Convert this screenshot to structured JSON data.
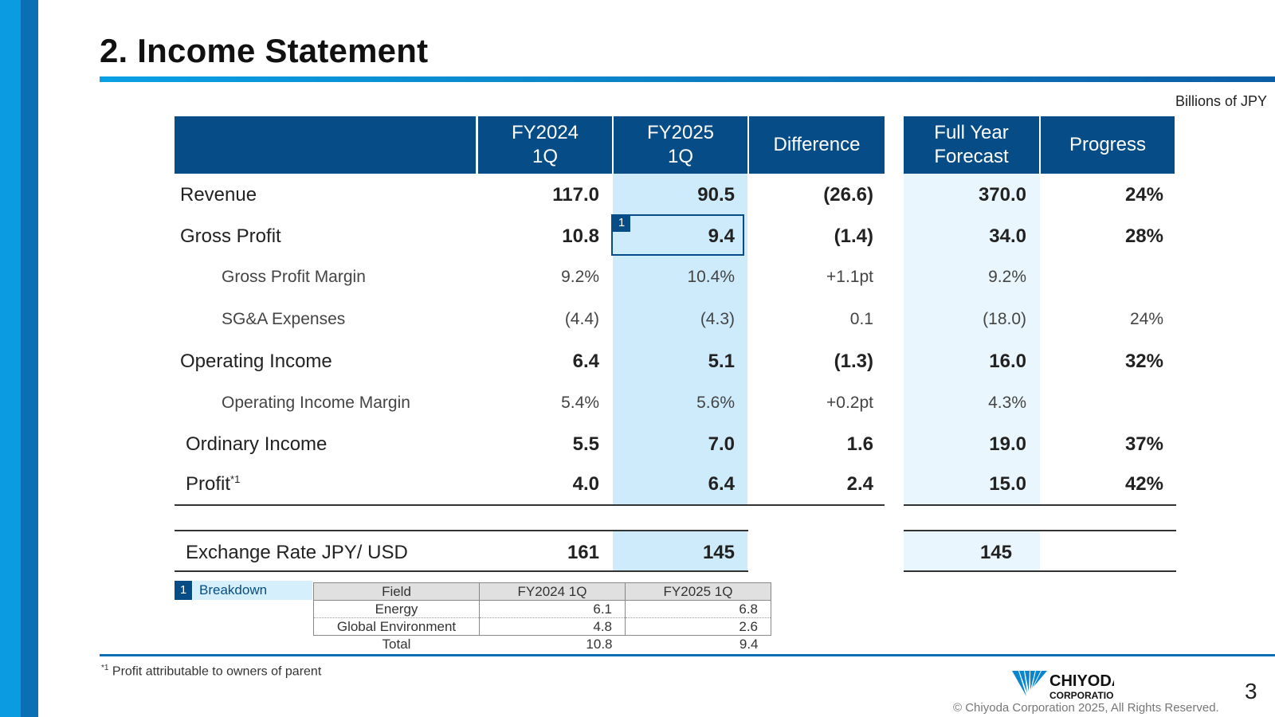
{
  "title": "2. Income Statement",
  "units": "Billions of JPY",
  "headers": {
    "fy2024": "FY2024\n1Q",
    "fy2025": "FY2025\n1Q",
    "difference": "Difference",
    "forecast": "Full Year\nForecast",
    "progress": "Progress"
  },
  "rows": [
    {
      "label": "Revenue",
      "fy2024": "117.0",
      "fy2025": "90.5",
      "difference": "(26.6)",
      "forecast": "370.0",
      "progress": "24%"
    },
    {
      "label": "Gross Profit",
      "fy2024": "10.8",
      "fy2025": "9.4",
      "difference": "(1.4)",
      "forecast": "34.0",
      "progress": "28%"
    },
    {
      "label": "Gross Profit Margin",
      "fy2024": "9.2%",
      "fy2025": "10.4%",
      "difference": "+1.1pt",
      "forecast": "9.2%",
      "progress": ""
    },
    {
      "label": "SG&A Expenses",
      "fy2024": "(4.4)",
      "fy2025": "(4.3)",
      "difference": "0.1",
      "forecast": "(18.0)",
      "progress": "24%"
    },
    {
      "label": "Operating Income",
      "fy2024": "6.4",
      "fy2025": "5.1",
      "difference": "(1.3)",
      "forecast": "16.0",
      "progress": "32%"
    },
    {
      "label": "Operating Income Margin",
      "fy2024": "5.4%",
      "fy2025": "5.6%",
      "difference": "+0.2pt",
      "forecast": "4.3%",
      "progress": ""
    },
    {
      "label": "Ordinary Income",
      "fy2024": "5.5",
      "fy2025": "7.0",
      "difference": "1.6",
      "forecast": "19.0",
      "progress": "37%"
    },
    {
      "label": "Profit",
      "label_sup": "*1",
      "fy2024": "4.0",
      "fy2025": "6.4",
      "difference": "2.4",
      "forecast": "15.0",
      "progress": "42%"
    }
  ],
  "exchange": {
    "label": "Exchange Rate JPY/ USD",
    "fy2024": "161",
    "fy2025": "145",
    "forecast": "145"
  },
  "highlight_badge": "1",
  "breakdown": {
    "badge": "1",
    "label": "Breakdown",
    "headers": [
      "Field",
      "FY2024 1Q",
      "FY2025 1Q"
    ],
    "rows": [
      [
        "Energy",
        "6.1",
        "6.8"
      ],
      [
        "Global Environment",
        "4.8",
        "2.6"
      ],
      [
        "Total",
        "10.8",
        "9.4"
      ]
    ]
  },
  "footnote": {
    "mark": "*1",
    "text": " Profit attributable to owners of parent"
  },
  "logo": {
    "line1": "CHIYODA",
    "line2": "CORPORATION"
  },
  "copyright": "© Chiyoda Corporation 2025, All Rights Reserved.",
  "page_number": "3",
  "colors": {
    "header_bg": "#064d87",
    "accent": "#0a9be0",
    "fy2025_shade": "#cdebfb",
    "forecast_shade": "#eaf6fd"
  }
}
